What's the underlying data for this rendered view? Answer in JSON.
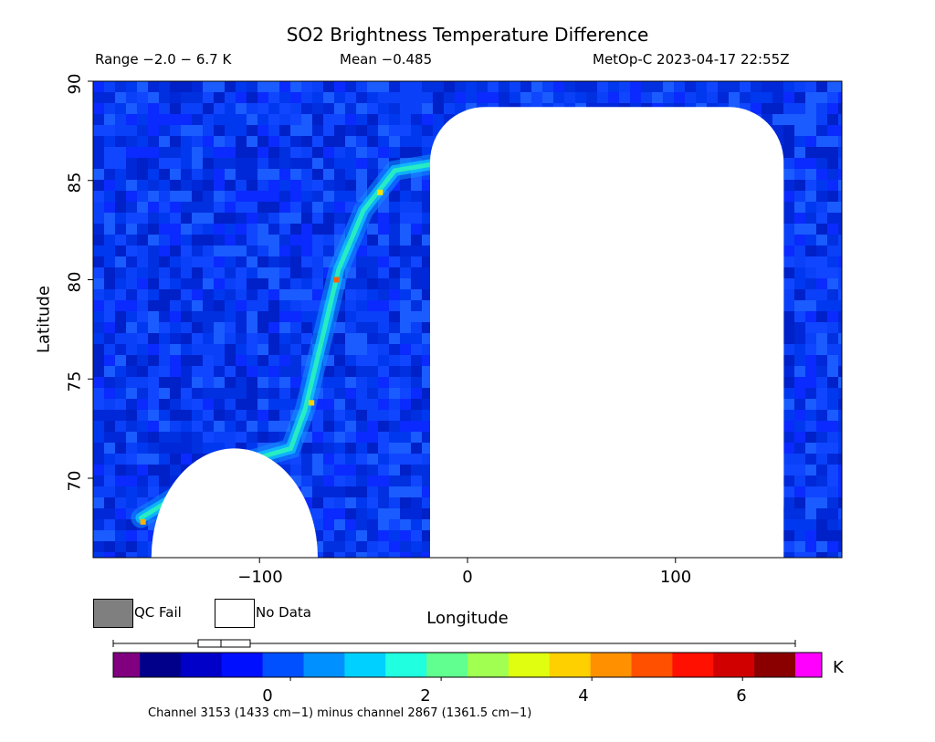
{
  "chart_data": {
    "type": "heatmap",
    "title": "SO2 Brightness Temperature Difference",
    "subtitles": {
      "range": "Range −2.0 − 6.7 K",
      "mean": "Mean −0.485",
      "satellite_time": "MetOp-C 2023-04-17 22:55Z"
    },
    "xlabel": "Longitude",
    "ylabel": "Latitude",
    "xlim": [
      -180,
      180
    ],
    "ylim": [
      66,
      90
    ],
    "x_ticks": [
      "−100",
      "0",
      "100"
    ],
    "x_tick_values": [
      -100,
      0,
      100
    ],
    "y_ticks": [
      "70",
      "75",
      "80",
      "85",
      "90"
    ],
    "y_tick_values": [
      70,
      75,
      80,
      85,
      90
    ],
    "colorbar": {
      "unit": "K",
      "ticks": [
        "0",
        "2",
        "4",
        "6"
      ],
      "tick_values": [
        0,
        2,
        4,
        6
      ],
      "range": [
        -2.0,
        6.7
      ],
      "colors": [
        "#00008a",
        "#0000c8",
        "#0010ff",
        "#0050ff",
        "#0090ff",
        "#00d0ff",
        "#20ffe0",
        "#60ff90",
        "#a0ff50",
        "#e0ff10",
        "#ffd000",
        "#ff9000",
        "#ff5000",
        "#ff1000",
        "#d00000",
        "#8a0000"
      ],
      "underflow_color": "#800080",
      "overflow_color": "#ff00ff"
    },
    "no_data_regions": [
      {
        "lon_min": -18,
        "lon_max": 152,
        "lat_min": 66,
        "lat_max": 88.7
      },
      {
        "lon_min": -152,
        "lon_max": -72,
        "lat_min": 66,
        "lat_max": 71.5
      }
    ],
    "enhanced_band": [
      {
        "lon": -157,
        "lat": 68.0
      },
      {
        "lon": -118,
        "lat": 70.5
      },
      {
        "lon": -85,
        "lat": 71.5
      },
      {
        "lon": -78,
        "lat": 73.5
      },
      {
        "lon": -70,
        "lat": 77.0
      },
      {
        "lon": -62,
        "lat": 80.5
      },
      {
        "lon": -50,
        "lat": 83.5
      },
      {
        "lon": -35,
        "lat": 85.5
      },
      {
        "lon": -18,
        "lat": 85.8
      }
    ],
    "grid": false
  },
  "legend": {
    "qc_fail_label": "QC Fail",
    "no_data_label": "No Data",
    "qc_fail_color": "#7f7f7f",
    "no_data_color": "#ffffff"
  },
  "footer": {
    "channel_note": "Channel 3153 (1433 cm−1) minus channel 2867 (1361.5 cm−1)"
  }
}
